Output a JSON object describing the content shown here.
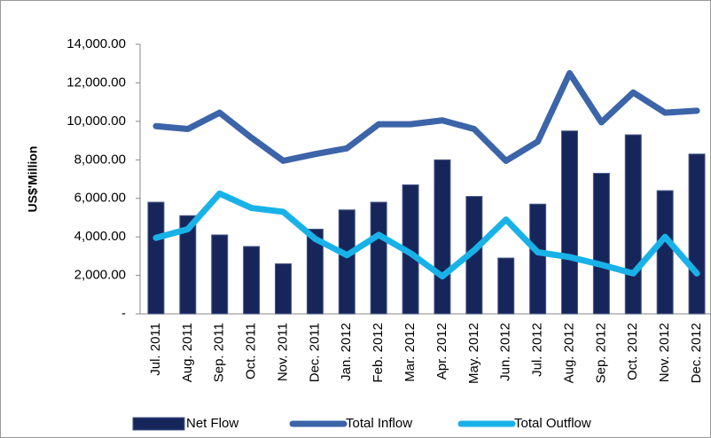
{
  "chart_data": {
    "type": "combo",
    "y_label": "US$'Million",
    "categories": [
      "Jul. 2011",
      "Aug. 2011",
      "Sep. 2011",
      "Oct. 2011",
      "Nov. 2011",
      "Dec. 2011",
      "Jan. 2012",
      "Feb. 2012",
      "Mar. 2012",
      "Apr. 2012",
      "May. 2012",
      "Jun. 2012",
      "Jul. 2012",
      "Aug. 2012",
      "Sep. 2012",
      "Oct. 2012",
      "Nov. 2012",
      "Dec. 2012"
    ],
    "series": [
      {
        "name": "Net Flow",
        "type": "bar",
        "color": "#17265a",
        "values": [
          5800,
          5100,
          4100,
          3500,
          2600,
          4400,
          5400,
          5800,
          6700,
          8000,
          6100,
          2900,
          5700,
          9500,
          7300,
          9300,
          6400,
          8300
        ]
      },
      {
        "name": "Total Inflow",
        "type": "line",
        "color": "#3c64a8",
        "values": [
          9750,
          9600,
          10450,
          9150,
          7950,
          8300,
          8600,
          9850,
          9850,
          10050,
          9600,
          7950,
          8950,
          12500,
          9950,
          11500,
          10450,
          10550
        ]
      },
      {
        "name": "Total Outflow",
        "type": "line",
        "color": "#19b2e8",
        "values": [
          3950,
          4400,
          6250,
          5500,
          5300,
          3900,
          3050,
          4100,
          3150,
          1950,
          3300,
          4900,
          3200,
          2950,
          2550,
          2100,
          4000,
          2100
        ]
      }
    ],
    "ylim": [
      0,
      14000
    ],
    "yticks": [
      {
        "value": 0,
        "label": "-"
      },
      {
        "value": 2000,
        "label": "2,000.00"
      },
      {
        "value": 4000,
        "label": "4,000.00"
      },
      {
        "value": 6000,
        "label": "6,000.00"
      },
      {
        "value": 8000,
        "label": "8,000.00"
      },
      {
        "value": 10000,
        "label": "10,000.00"
      },
      {
        "value": 12000,
        "label": "12,000.00"
      },
      {
        "value": 14000,
        "label": "14,000.00"
      }
    ],
    "grid": false
  }
}
